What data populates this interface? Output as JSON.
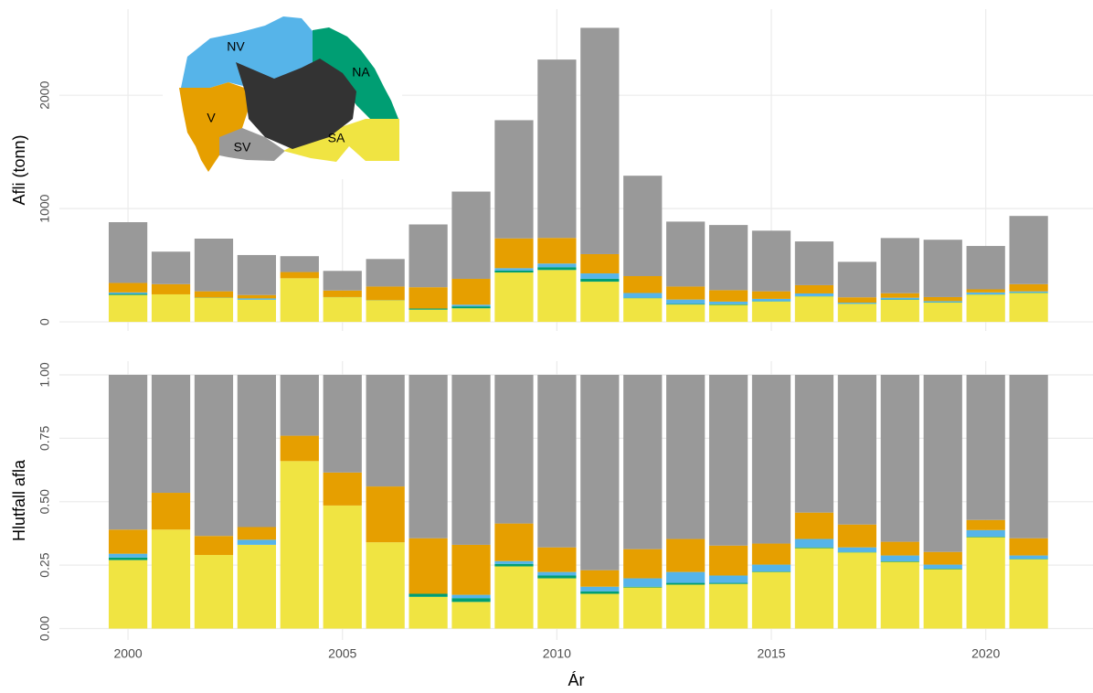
{
  "chart_data": [
    {
      "type": "bar",
      "stacked": true,
      "ylabel": "Afli (tonn)",
      "x": [
        2000,
        2001,
        2002,
        2003,
        2004,
        2005,
        2006,
        2007,
        2008,
        2009,
        2010,
        2011,
        2012,
        2013,
        2014,
        2015,
        2016,
        2017,
        2018,
        2019,
        2020,
        2021
      ],
      "series": [
        {
          "name": "SA",
          "color": "#f0e442",
          "values": [
            238,
            243,
            213,
            195,
            385,
            218,
            190,
            108,
            120,
            436,
            458,
            355,
            209,
            153,
            150,
            180,
            225,
            159,
            195,
            170,
            241,
            255
          ]
        },
        {
          "name": "NA",
          "color": "#009e73",
          "values": [
            9,
            0,
            2,
            0,
            0,
            1,
            2,
            10,
            17,
            18,
            25,
            26,
            4,
            6,
            6,
            3,
            2,
            2,
            3,
            3,
            2,
            3
          ]
        },
        {
          "name": "NV",
          "color": "#56b4e9",
          "values": [
            13,
            0,
            0,
            12,
            0,
            0,
            0,
            0,
            15,
            20,
            32,
            47,
            42,
            38,
            23,
            20,
            24,
            9,
            15,
            10,
            17,
            11
          ]
        },
        {
          "name": "V",
          "color": "#e69f00",
          "values": [
            84,
            90,
            55,
            30,
            55,
            58,
            120,
            188,
            228,
            263,
            226,
            170,
            149,
            115,
            101,
            67,
            73,
            47,
            40,
            36,
            27,
            64
          ]
        },
        {
          "name": "SV",
          "color": "#999999",
          "values": [
            536,
            287,
            465,
            353,
            140,
            173,
            243,
            554,
            770,
            1043,
            1574,
            1997,
            886,
            573,
            575,
            535,
            386,
            313,
            487,
            506,
            383,
            602
          ]
        }
      ],
      "xlim": [
        1998.4,
        2022.5
      ],
      "xticks": [
        2000,
        2005,
        2010,
        2015,
        2020
      ],
      "xtick_labels": false,
      "ylim": [
        -80,
        2760
      ],
      "yticks": [
        0,
        1000,
        2000
      ],
      "grid": true
    },
    {
      "type": "bar",
      "stacked": true,
      "ylabel": "Hlutfall afla",
      "xlabel": "Ár",
      "x": [
        2000,
        2001,
        2002,
        2003,
        2004,
        2005,
        2006,
        2007,
        2008,
        2009,
        2010,
        2011,
        2012,
        2013,
        2014,
        2015,
        2016,
        2017,
        2018,
        2019,
        2020,
        2021
      ],
      "series": [
        {
          "name": "SA",
          "color": "#f0e442",
          "values": [
            0.27,
            0.39,
            0.29,
            0.33,
            0.66,
            0.485,
            0.34,
            0.125,
            0.105,
            0.245,
            0.198,
            0.137,
            0.162,
            0.173,
            0.176,
            0.223,
            0.317,
            0.3,
            0.263,
            0.234,
            0.36,
            0.273
          ]
        },
        {
          "name": "NA",
          "color": "#009e73",
          "values": [
            0.01,
            0,
            0,
            0,
            0,
            0,
            0,
            0.012,
            0.015,
            0.01,
            0.011,
            0.01,
            0.003,
            0.007,
            0.004,
            0.002,
            0.003,
            0.002,
            0.002,
            0.002,
            0.002,
            0.002
          ]
        },
        {
          "name": "NV",
          "color": "#56b4e9",
          "values": [
            0.015,
            0,
            0,
            0.02,
            0,
            0,
            0,
            0,
            0.013,
            0.011,
            0.014,
            0.018,
            0.033,
            0.043,
            0.029,
            0.027,
            0.033,
            0.018,
            0.023,
            0.016,
            0.026,
            0.013
          ]
        },
        {
          "name": "V",
          "color": "#e69f00",
          "values": [
            0.095,
            0.145,
            0.075,
            0.05,
            0.1,
            0.13,
            0.22,
            0.219,
            0.197,
            0.148,
            0.097,
            0.065,
            0.115,
            0.13,
            0.118,
            0.083,
            0.104,
            0.09,
            0.054,
            0.05,
            0.04,
            0.068
          ]
        },
        {
          "name": "SV",
          "color": "#999999",
          "values": [
            0.61,
            0.465,
            0.635,
            0.6,
            0.24,
            0.385,
            0.44,
            0.644,
            0.67,
            0.586,
            0.68,
            0.77,
            0.687,
            0.647,
            0.673,
            0.665,
            0.543,
            0.59,
            0.658,
            0.698,
            0.572,
            0.644
          ]
        }
      ],
      "xlim": [
        1998.4,
        2022.5
      ],
      "xticks": [
        2000,
        2005,
        2010,
        2015,
        2020
      ],
      "xtick_labels": true,
      "ylim": [
        -0.045,
        1.054
      ],
      "yticks": [
        {
          "value": 0,
          "label": "0.00"
        },
        {
          "value": 0.25,
          "label": "0.25"
        },
        {
          "value": 0.5,
          "label": "0.50"
        },
        {
          "value": 0.75,
          "label": "0.75"
        },
        {
          "value": 1,
          "label": "1.00"
        }
      ],
      "grid": true
    }
  ],
  "map": {
    "labels": [
      "NV",
      "NA",
      "V",
      "SV",
      "SA"
    ]
  }
}
